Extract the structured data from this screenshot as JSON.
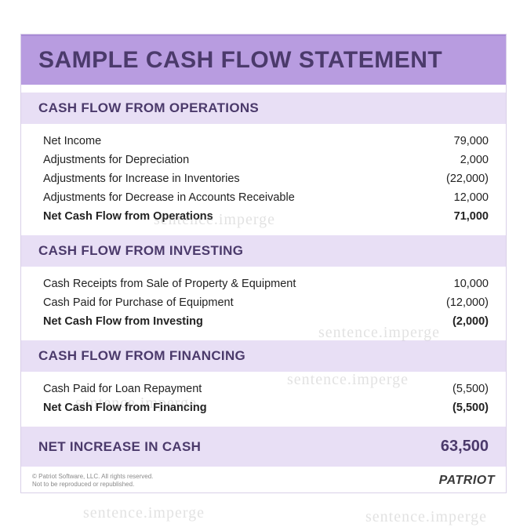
{
  "colors": {
    "title_bg": "#b89ce0",
    "title_text": "#4b3a6b",
    "section_bg": "#e8dff5",
    "section_text": "#4b3a6b",
    "body_text": "#222222",
    "border": "#d9d0e8",
    "footer_text": "#8a8a8a",
    "brand_text": "#3a3a3a",
    "watermark": "rgba(140,140,140,0.25)"
  },
  "title": "SAMPLE CASH FLOW STATEMENT",
  "sections": [
    {
      "heading": "CASH FLOW FROM OPERATIONS",
      "rows": [
        {
          "label": "Net Income",
          "value": "79,000",
          "bold": false
        },
        {
          "label": "Adjustments for Depreciation",
          "value": "2,000",
          "bold": false
        },
        {
          "label": "Adjustments for Increase in Inventories",
          "value": "(22,000)",
          "bold": false
        },
        {
          "label": "Adjustments for Decrease in Accounts Receivable",
          "value": "12,000",
          "bold": false
        },
        {
          "label": "Net Cash Flow from Operations",
          "value": "71,000",
          "bold": true
        }
      ]
    },
    {
      "heading": "CASH FLOW FROM INVESTING",
      "rows": [
        {
          "label": "Cash Receipts from Sale of Property & Equipment",
          "value": "10,000",
          "bold": false
        },
        {
          "label": "Cash Paid for Purchase of Equipment",
          "value": "(12,000)",
          "bold": false
        },
        {
          "label": "Net Cash Flow from Investing",
          "value": "(2,000)",
          "bold": true
        }
      ]
    },
    {
      "heading": "CASH FLOW FROM FINANCING",
      "rows": [
        {
          "label": "Cash Paid for Loan Repayment",
          "value": "(5,500)",
          "bold": false
        },
        {
          "label": "Net Cash Flow from Financing",
          "value": "(5,500)",
          "bold": true
        }
      ]
    }
  ],
  "net_increase": {
    "label": "NET INCREASE IN CASH",
    "value": "63,500"
  },
  "footer": {
    "copyright_line1": "© Patriot Software, LLC. All rights reserved.",
    "copyright_line2": "Not to be reproduced or republished.",
    "brand": "PATRIOT"
  },
  "watermark_text": "sentence.imperge"
}
